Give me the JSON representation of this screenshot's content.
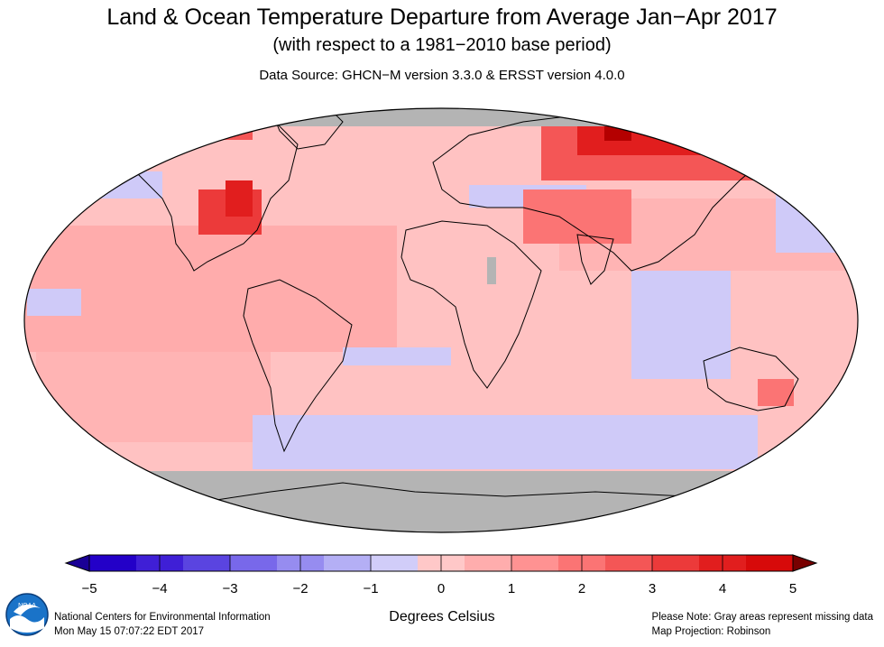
{
  "header": {
    "title": "Land & Ocean Temperature Departure from Average Jan−Apr 2017",
    "subtitle": "(with respect to a 1981−2010 base period)",
    "source": "Data Source: GHCN−M version 3.3.0 & ERSST version 4.0.0"
  },
  "map": {
    "projection": "Robinson",
    "missing_color": "#b4b4b4",
    "land_outline_color": "#000000"
  },
  "colorbar": {
    "ticks": [
      "−5",
      "−4",
      "−3",
      "−2",
      "−1",
      "0",
      "1",
      "2",
      "3",
      "4",
      "5"
    ],
    "tick_values": [
      -5,
      -4,
      -3,
      -2,
      -1,
      0,
      1,
      2,
      3,
      4,
      5
    ],
    "colors": [
      "#2300c8",
      "#3f1fd6",
      "#5a44e0",
      "#7868ea",
      "#968cf0",
      "#b4aff5",
      "#d1cdf9",
      "#ffc8c8",
      "#ffadad",
      "#ff9292",
      "#fb7474",
      "#f45656",
      "#ec3a3a",
      "#e11e1e",
      "#d70a0a"
    ],
    "under_color": "#1a0096",
    "over_color": "#780000",
    "units": "Degrees Celsius"
  },
  "footer": {
    "org": "National Centers for Environmental Information",
    "timestamp": "Mon May 15 07:07:22 EDT 2017",
    "note": "Please Note: Gray areas represent missing data",
    "projection_label": "Map Projection: Robinson"
  },
  "logo": {
    "text": "NOAA",
    "icon": "noaa-logo-icon"
  }
}
